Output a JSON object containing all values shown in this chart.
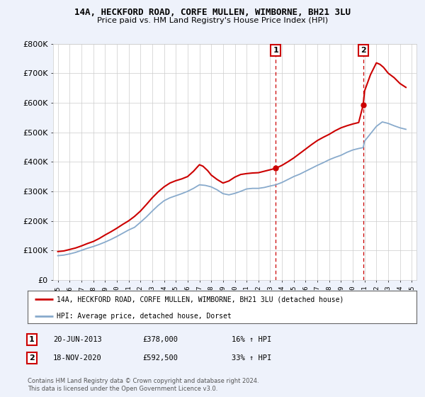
{
  "title1": "14A, HECKFORD ROAD, CORFE MULLEN, WIMBORNE, BH21 3LU",
  "title2": "Price paid vs. HM Land Registry's House Price Index (HPI)",
  "ylim": [
    0,
    800000
  ],
  "bg_color": "#eef2fb",
  "plot_bg": "#ffffff",
  "legend_label1": "14A, HECKFORD ROAD, CORFE MULLEN, WIMBORNE, BH21 3LU (detached house)",
  "legend_label2": "HPI: Average price, detached house, Dorset",
  "marker1_date": 2013.47,
  "marker1_price": 378000,
  "marker1_text": "20-JUN-2013",
  "marker1_price_text": "£378,000",
  "marker1_hpi": "16% ↑ HPI",
  "marker2_date": 2020.88,
  "marker2_price": 592500,
  "marker2_text": "18-NOV-2020",
  "marker2_price_text": "£592,500",
  "marker2_hpi": "33% ↑ HPI",
  "copyright_text": "Contains HM Land Registry data © Crown copyright and database right 2024.\nThis data is licensed under the Open Government Licence v3.0.",
  "red_color": "#cc0000",
  "blue_color": "#88aacc",
  "hpi_years": [
    1995.0,
    1995.5,
    1996.0,
    1996.5,
    1997.0,
    1997.5,
    1998.0,
    1998.5,
    1999.0,
    1999.5,
    2000.0,
    2000.5,
    2001.0,
    2001.5,
    2002.0,
    2002.5,
    2003.0,
    2003.5,
    2004.0,
    2004.5,
    2005.0,
    2005.5,
    2006.0,
    2006.5,
    2007.0,
    2007.5,
    2008.0,
    2008.5,
    2009.0,
    2009.5,
    2010.0,
    2010.5,
    2011.0,
    2011.5,
    2012.0,
    2012.5,
    2013.0,
    2013.47,
    2014.0,
    2014.5,
    2015.0,
    2015.5,
    2016.0,
    2016.5,
    2017.0,
    2017.5,
    2018.0,
    2018.5,
    2019.0,
    2019.5,
    2020.0,
    2020.5,
    2020.88,
    2021.0,
    2021.5,
    2022.0,
    2022.5,
    2023.0,
    2023.5,
    2024.0,
    2024.5
  ],
  "hpi_values": [
    82000,
    84000,
    88000,
    93000,
    100000,
    107000,
    113000,
    120000,
    128000,
    137000,
    147000,
    158000,
    169000,
    178000,
    195000,
    213000,
    233000,
    252000,
    268000,
    278000,
    285000,
    292000,
    300000,
    310000,
    322000,
    320000,
    315000,
    305000,
    292000,
    288000,
    293000,
    300000,
    308000,
    310000,
    310000,
    313000,
    318000,
    322000,
    330000,
    340000,
    350000,
    358000,
    368000,
    378000,
    388000,
    397000,
    407000,
    415000,
    422000,
    432000,
    440000,
    445000,
    448000,
    470000,
    495000,
    520000,
    535000,
    530000,
    522000,
    515000,
    510000
  ],
  "house_years": [
    1995.0,
    1995.5,
    1996.0,
    1996.5,
    1997.0,
    1997.5,
    1998.0,
    1998.5,
    1999.0,
    1999.5,
    2000.0,
    2000.5,
    2001.0,
    2001.5,
    2002.0,
    2002.5,
    2003.0,
    2003.5,
    2004.0,
    2004.5,
    2005.0,
    2005.5,
    2006.0,
    2006.5,
    2007.0,
    2007.3,
    2007.7,
    2008.0,
    2008.5,
    2009.0,
    2009.5,
    2010.0,
    2010.5,
    2011.0,
    2011.5,
    2012.0,
    2012.5,
    2013.0,
    2013.47,
    2014.0,
    2014.5,
    2015.0,
    2015.5,
    2016.0,
    2016.5,
    2017.0,
    2017.5,
    2018.0,
    2018.5,
    2019.0,
    2019.5,
    2020.0,
    2020.5,
    2020.88,
    2021.0,
    2021.5,
    2022.0,
    2022.3,
    2022.6,
    2023.0,
    2023.5,
    2024.0,
    2024.5
  ],
  "house_values": [
    96000,
    98000,
    103000,
    108000,
    115000,
    123000,
    130000,
    140000,
    152000,
    163000,
    175000,
    188000,
    200000,
    215000,
    233000,
    255000,
    278000,
    298000,
    315000,
    328000,
    336000,
    342000,
    350000,
    368000,
    390000,
    385000,
    370000,
    355000,
    340000,
    328000,
    335000,
    348000,
    357000,
    360000,
    362000,
    363000,
    368000,
    373000,
    378000,
    388000,
    400000,
    413000,
    428000,
    443000,
    458000,
    472000,
    483000,
    493000,
    505000,
    515000,
    522000,
    528000,
    533000,
    592500,
    640000,
    695000,
    735000,
    730000,
    720000,
    700000,
    685000,
    665000,
    652000
  ]
}
